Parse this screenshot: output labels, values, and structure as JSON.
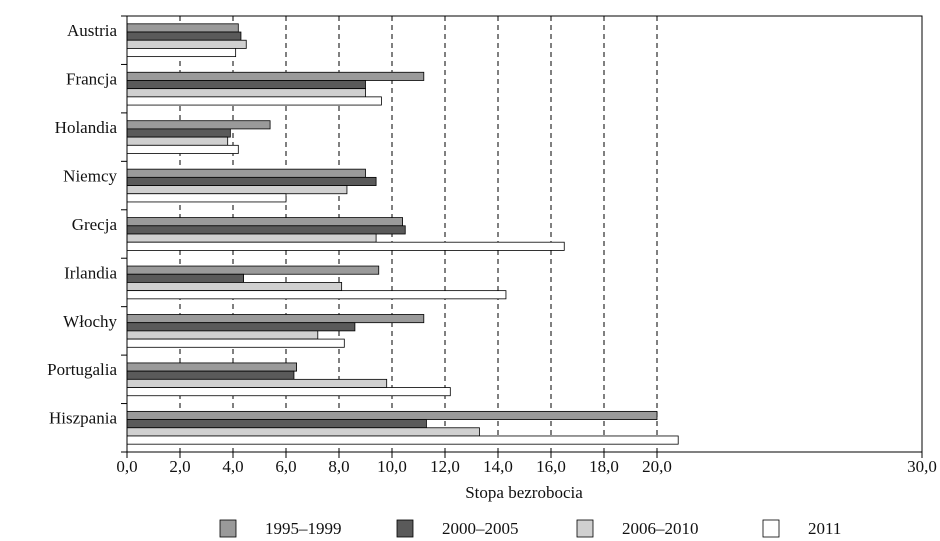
{
  "chart_data": {
    "type": "bar",
    "orientation": "horizontal",
    "x_label": "Stopa bezrobocia",
    "categories": [
      "Austria",
      "Francja",
      "Holandia",
      "Niemcy",
      "Grecja",
      "Irlandia",
      "Włochy",
      "Portugalia",
      "Hiszpania"
    ],
    "series": [
      {
        "name": "1995–1999",
        "color": "#9a9a9a",
        "values": [
          4.2,
          11.2,
          5.4,
          9.0,
          10.4,
          9.5,
          11.2,
          6.4,
          20.0
        ]
      },
      {
        "name": "2000–2005",
        "color": "#5a5a5a",
        "values": [
          4.3,
          9.0,
          3.9,
          9.4,
          10.5,
          4.4,
          8.6,
          6.3,
          11.3
        ]
      },
      {
        "name": "2006–2010",
        "color": "#d0d0d0",
        "values": [
          4.5,
          9.0,
          3.8,
          8.3,
          9.4,
          8.1,
          7.2,
          9.8,
          13.3
        ]
      },
      {
        "name": "2011",
        "color": "#ffffff",
        "values": [
          4.1,
          9.6,
          4.2,
          6.0,
          16.5,
          14.3,
          8.2,
          12.2,
          20.8
        ]
      }
    ],
    "xlim": [
      0,
      30
    ],
    "xticks": [
      {
        "value": 0,
        "label": "0,0"
      },
      {
        "value": 2,
        "label": "2,0"
      },
      {
        "value": 4,
        "label": "4,0"
      },
      {
        "value": 6,
        "label": "6,0"
      },
      {
        "value": 8,
        "label": "8,0"
      },
      {
        "value": 10,
        "label": "10,0"
      },
      {
        "value": 12,
        "label": "12,0"
      },
      {
        "value": 14,
        "label": "14,0"
      },
      {
        "value": 16,
        "label": "16,0"
      },
      {
        "value": 18,
        "label": "18,0"
      },
      {
        "value": 20,
        "label": "20,0"
      },
      {
        "value": 30,
        "label": "30,0"
      }
    ],
    "grid": true
  }
}
